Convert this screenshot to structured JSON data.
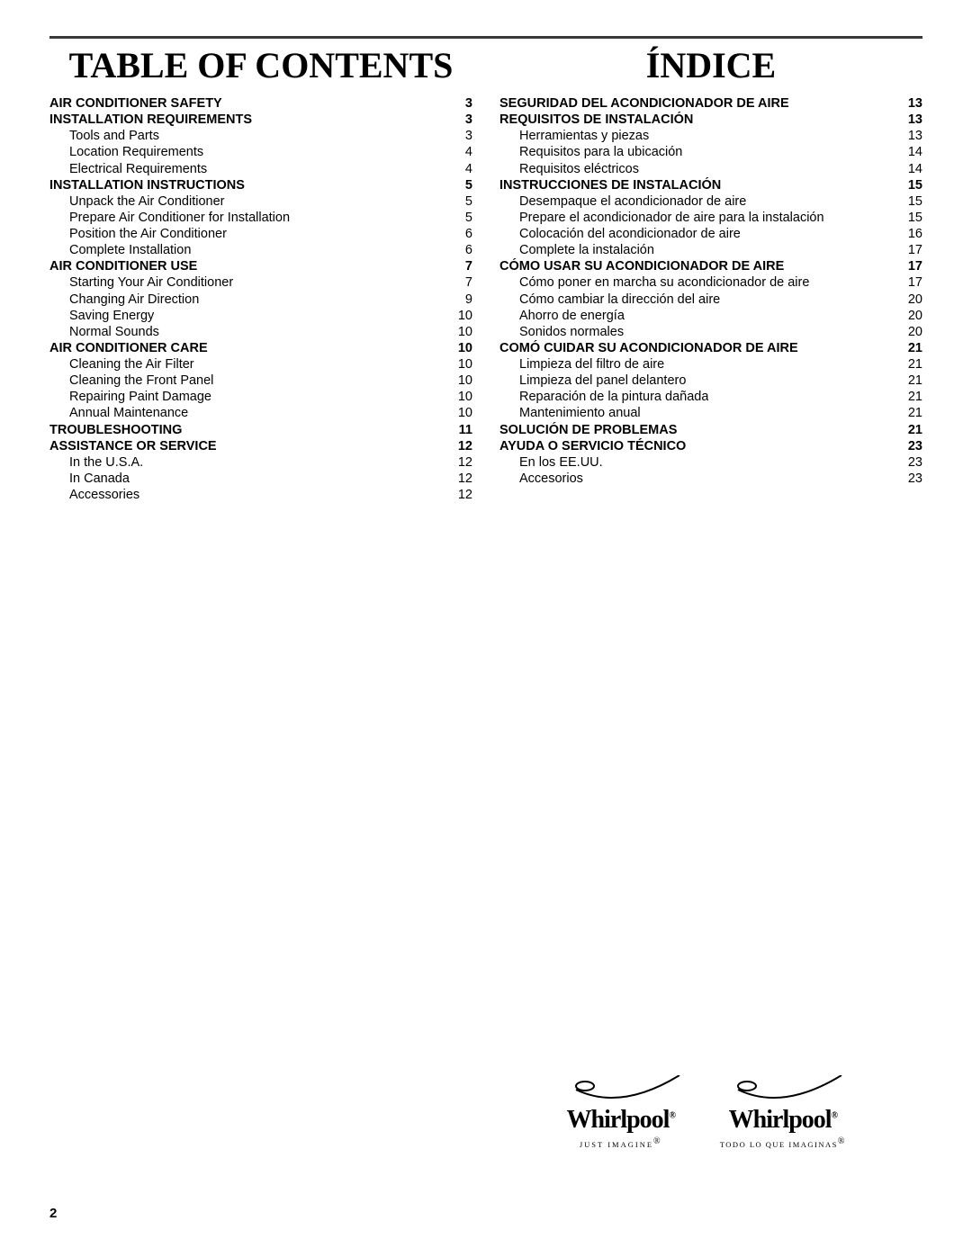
{
  "page_number": "2",
  "colors": {
    "rule": "#383838",
    "text": "#000000",
    "background": "#ffffff"
  },
  "typography": {
    "title_font": "Times New Roman",
    "body_font": "Arial",
    "title_size_pt": 30,
    "body_size_pt": 11
  },
  "left": {
    "title": "TABLE OF CONTENTS",
    "entries": [
      {
        "label": "AIR CONDITIONER SAFETY",
        "page": "3",
        "bold": true,
        "indent": false
      },
      {
        "label": "INSTALLATION REQUIREMENTS",
        "page": "3",
        "bold": true,
        "indent": false
      },
      {
        "label": "Tools and Parts",
        "page": "3",
        "bold": false,
        "indent": true
      },
      {
        "label": "Location Requirements",
        "page": "4",
        "bold": false,
        "indent": true
      },
      {
        "label": "Electrical Requirements",
        "page": "4",
        "bold": false,
        "indent": true
      },
      {
        "label": "INSTALLATION INSTRUCTIONS",
        "page": "5",
        "bold": true,
        "indent": false
      },
      {
        "label": "Unpack the Air Conditioner",
        "page": "5",
        "bold": false,
        "indent": true
      },
      {
        "label": "Prepare Air Conditioner for Installation",
        "page": "5",
        "bold": false,
        "indent": true
      },
      {
        "label": "Position the Air Conditioner",
        "page": "6",
        "bold": false,
        "indent": true
      },
      {
        "label": "Complete Installation",
        "page": "6",
        "bold": false,
        "indent": true
      },
      {
        "label": "AIR CONDITIONER USE",
        "page": "7",
        "bold": true,
        "indent": false
      },
      {
        "label": "Starting Your Air Conditioner",
        "page": "7",
        "bold": false,
        "indent": true
      },
      {
        "label": "Changing Air Direction",
        "page": "9",
        "bold": false,
        "indent": true
      },
      {
        "label": "Saving Energy",
        "page": "10",
        "bold": false,
        "indent": true
      },
      {
        "label": "Normal Sounds",
        "page": "10",
        "bold": false,
        "indent": true
      },
      {
        "label": "AIR CONDITIONER CARE",
        "page": "10",
        "bold": true,
        "indent": false
      },
      {
        "label": "Cleaning the Air Filter",
        "page": "10",
        "bold": false,
        "indent": true
      },
      {
        "label": "Cleaning the Front Panel",
        "page": "10",
        "bold": false,
        "indent": true
      },
      {
        "label": "Repairing Paint Damage",
        "page": "10",
        "bold": false,
        "indent": true
      },
      {
        "label": "Annual Maintenance",
        "page": "10",
        "bold": false,
        "indent": true
      },
      {
        "label": "TROUBLESHOOTING",
        "page": "11",
        "bold": true,
        "indent": false
      },
      {
        "label": "ASSISTANCE OR SERVICE",
        "page": "12",
        "bold": true,
        "indent": false
      },
      {
        "label": "In the U.S.A.",
        "page": "12",
        "bold": false,
        "indent": true
      },
      {
        "label": "In Canada",
        "page": "12",
        "bold": false,
        "indent": true
      },
      {
        "label": "Accessories",
        "page": "12",
        "bold": false,
        "indent": true
      }
    ]
  },
  "right": {
    "title": "ÍNDICE",
    "entries": [
      {
        "label": "SEGURIDAD DEL ACONDICIONADOR DE AIRE",
        "page": "13",
        "bold": true,
        "indent": false
      },
      {
        "label": "REQUISITOS DE INSTALACIÓN",
        "page": "13",
        "bold": true,
        "indent": false
      },
      {
        "label": "Herramientas y piezas",
        "page": "13",
        "bold": false,
        "indent": true
      },
      {
        "label": "Requisitos para la ubicación",
        "page": "14",
        "bold": false,
        "indent": true
      },
      {
        "label": "Requisitos eléctricos",
        "page": "14",
        "bold": false,
        "indent": true
      },
      {
        "label": "INSTRUCCIONES DE INSTALACIÓN",
        "page": "15",
        "bold": true,
        "indent": false
      },
      {
        "label": "Desempaque el acondicionador de aire",
        "page": "15",
        "bold": false,
        "indent": true
      },
      {
        "label": "Prepare el acondicionador de aire para la instalación",
        "page": "15",
        "bold": false,
        "indent": true
      },
      {
        "label": "Colocación del acondicionador de aire",
        "page": "16",
        "bold": false,
        "indent": true
      },
      {
        "label": "Complete la instalación",
        "page": "17",
        "bold": false,
        "indent": true
      },
      {
        "label": "CÓMO USAR SU ACONDICIONADOR DE AIRE",
        "page": "17",
        "bold": true,
        "indent": false
      },
      {
        "label": "Cómo poner en marcha su acondicionador de aire",
        "page": "17",
        "bold": false,
        "indent": true
      },
      {
        "label": "Cómo cambiar la dirección del aire",
        "page": "20",
        "bold": false,
        "indent": true
      },
      {
        "label": "Ahorro de energía",
        "page": "20",
        "bold": false,
        "indent": true
      },
      {
        "label": "Sonidos normales",
        "page": "20",
        "bold": false,
        "indent": true
      },
      {
        "label": "COMÓ CUIDAR SU ACONDICIONADOR DE AIRE",
        "page": "21",
        "bold": true,
        "indent": false
      },
      {
        "label": "Limpieza del filtro de aire",
        "page": "21",
        "bold": false,
        "indent": true
      },
      {
        "label": "Limpieza del panel delantero",
        "page": "21",
        "bold": false,
        "indent": true
      },
      {
        "label": "Reparación de la pintura dañada",
        "page": "21",
        "bold": false,
        "indent": true
      },
      {
        "label": "Mantenimiento anual",
        "page": "21",
        "bold": false,
        "indent": true
      },
      {
        "label": "SOLUCIÓN DE PROBLEMAS",
        "page": "21",
        "bold": true,
        "indent": false
      },
      {
        "label": "AYUDA O SERVICIO TÉCNICO",
        "page": "23",
        "bold": true,
        "indent": false
      },
      {
        "label": "En los EE.UU.",
        "page": "23",
        "bold": false,
        "indent": true
      },
      {
        "label": "Accesorios",
        "page": "23",
        "bold": false,
        "indent": true
      }
    ]
  },
  "logos": {
    "brand": "Whirlpool",
    "tagline_en": "JUST IMAGINE",
    "tagline_es": "TODO LO QUE IMAGINAS"
  }
}
